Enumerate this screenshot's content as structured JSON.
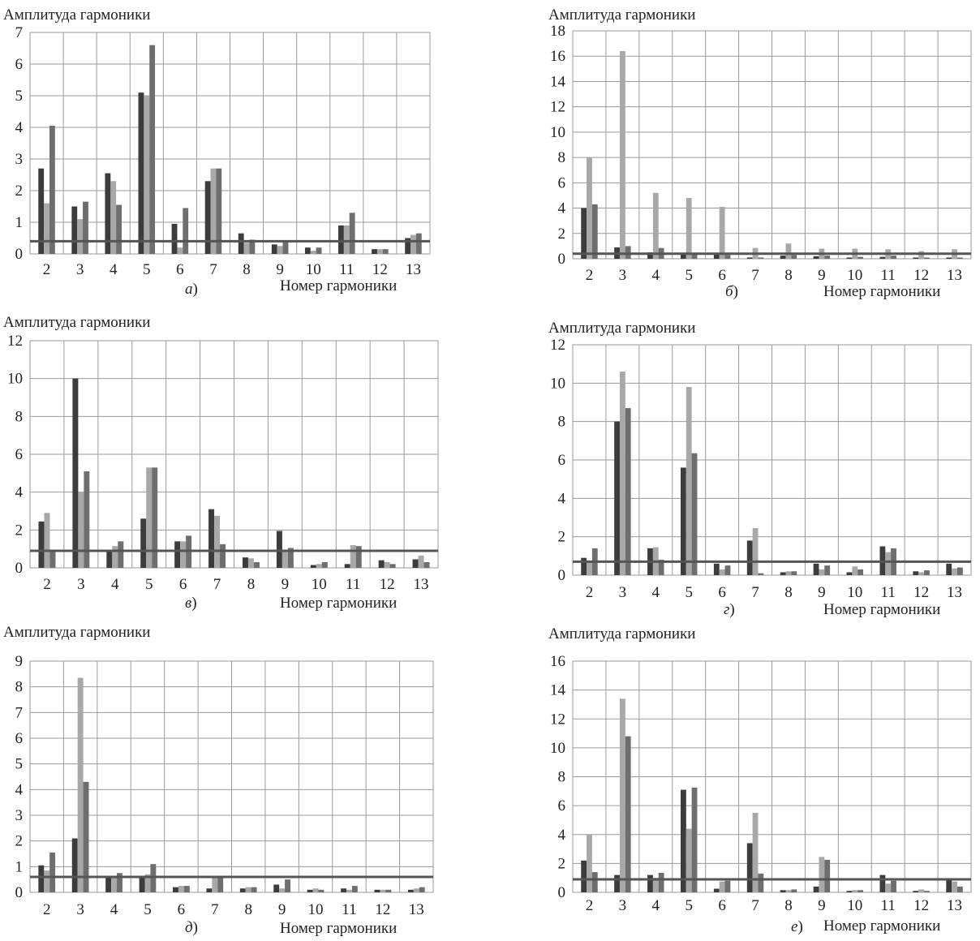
{
  "chart_data": [
    {
      "type": "bar",
      "panel_label": "а",
      "ylabel": "Амплитуда гармоники",
      "xlabel": "Номер гармоники",
      "categories": [
        "2",
        "3",
        "4",
        "5",
        "6",
        "7",
        "8",
        "9",
        "10",
        "11",
        "12",
        "13"
      ],
      "ylim": [
        0,
        7
      ],
      "yticks": [
        0,
        1,
        2,
        3,
        4,
        5,
        6,
        7
      ],
      "threshold": 0.4,
      "series": [
        {
          "color": "#3c3c3c",
          "values": [
            2.7,
            1.5,
            2.55,
            5.1,
            0.95,
            2.3,
            0.65,
            0.3,
            0.2,
            0.9,
            0.15,
            0.5
          ]
        },
        {
          "color": "#a8a8a8",
          "values": [
            1.6,
            1.1,
            2.3,
            5.0,
            0.2,
            2.7,
            0.35,
            0.25,
            0.1,
            0.9,
            0.15,
            0.6
          ]
        },
        {
          "color": "#6e6e6e",
          "values": [
            4.05,
            1.65,
            1.55,
            6.6,
            1.45,
            2.7,
            0.45,
            0.4,
            0.2,
            1.3,
            0.15,
            0.65
          ]
        }
      ]
    },
    {
      "type": "bar",
      "panel_label": "б",
      "ylabel": "Амплитуда гармоники",
      "xlabel": "Номер гармоники",
      "categories": [
        "2",
        "3",
        "4",
        "5",
        "6",
        "7",
        "8",
        "9",
        "10",
        "11",
        "12",
        "13"
      ],
      "ylim": [
        0,
        18
      ],
      "yticks": [
        0,
        2,
        4,
        6,
        8,
        10,
        12,
        14,
        16,
        18
      ],
      "threshold": 0.4,
      "series": [
        {
          "color": "#3c3c3c",
          "values": [
            4.0,
            0.9,
            0.5,
            0.4,
            0.35,
            0.1,
            0.25,
            0.2,
            0.1,
            0.15,
            0.1,
            0.1
          ]
        },
        {
          "color": "#a8a8a8",
          "values": [
            8.0,
            16.4,
            5.2,
            4.8,
            4.1,
            0.85,
            1.2,
            0.8,
            0.8,
            0.75,
            0.6,
            0.75
          ]
        },
        {
          "color": "#6e6e6e",
          "values": [
            4.3,
            1.0,
            0.85,
            0.45,
            0.3,
            0.1,
            0.3,
            0.25,
            0.15,
            0.25,
            0.1,
            0.1
          ]
        }
      ]
    },
    {
      "type": "bar",
      "panel_label": "в",
      "ylabel": "Амплитуда гармоники",
      "xlabel": "Номер гармоники",
      "categories": [
        "2",
        "3",
        "4",
        "5",
        "6",
        "7",
        "8",
        "9",
        "10",
        "11",
        "12",
        "13"
      ],
      "ylim": [
        0,
        12
      ],
      "yticks": [
        0,
        2,
        4,
        6,
        8,
        10,
        12
      ],
      "threshold": 0.9,
      "series": [
        {
          "color": "#3c3c3c",
          "values": [
            2.45,
            10.0,
            0.9,
            2.6,
            1.4,
            3.1,
            0.55,
            1.95,
            0.15,
            0.2,
            0.4,
            0.45
          ]
        },
        {
          "color": "#a8a8a8",
          "values": [
            2.9,
            4.0,
            1.15,
            5.3,
            1.4,
            2.75,
            0.5,
            0.95,
            0.2,
            1.2,
            0.3,
            0.65
          ]
        },
        {
          "color": "#6e6e6e",
          "values": [
            0.95,
            5.1,
            1.4,
            5.3,
            1.7,
            1.25,
            0.3,
            1.05,
            0.3,
            1.15,
            0.2,
            0.3
          ]
        }
      ]
    },
    {
      "type": "bar",
      "panel_label": "г",
      "ylabel": "Амплитуда гармоники",
      "xlabel": "Номер гармоники",
      "categories": [
        "2",
        "3",
        "4",
        "5",
        "6",
        "7",
        "8",
        "9",
        "10",
        "11",
        "12",
        "13"
      ],
      "ylim": [
        0,
        12
      ],
      "yticks": [
        0,
        2,
        4,
        6,
        8,
        10,
        12
      ],
      "threshold": 0.7,
      "series": [
        {
          "color": "#3c3c3c",
          "values": [
            0.9,
            8.0,
            1.4,
            5.6,
            0.6,
            1.8,
            0.15,
            0.6,
            0.15,
            1.5,
            0.2,
            0.6
          ]
        },
        {
          "color": "#a8a8a8",
          "values": [
            0.7,
            10.6,
            1.45,
            9.8,
            0.3,
            2.45,
            0.2,
            0.3,
            0.45,
            1.2,
            0.15,
            0.35
          ]
        },
        {
          "color": "#6e6e6e",
          "values": [
            1.4,
            8.7,
            0.8,
            6.35,
            0.5,
            0.1,
            0.2,
            0.5,
            0.3,
            1.4,
            0.25,
            0.4
          ]
        }
      ]
    },
    {
      "type": "bar",
      "panel_label": "д",
      "ylabel": "Амплитуда гармоники",
      "xlabel": "Номер гармоники",
      "categories": [
        "2",
        "3",
        "4",
        "5",
        "6",
        "7",
        "8",
        "9",
        "10",
        "11",
        "12",
        "13"
      ],
      "ylim": [
        0,
        9
      ],
      "yticks": [
        0,
        1,
        2,
        3,
        4,
        5,
        6,
        7,
        8,
        9
      ],
      "threshold": 0.6,
      "series": [
        {
          "color": "#3c3c3c",
          "values": [
            1.05,
            2.1,
            0.6,
            0.6,
            0.2,
            0.15,
            0.15,
            0.3,
            0.1,
            0.15,
            0.1,
            0.1
          ]
        },
        {
          "color": "#a8a8a8",
          "values": [
            0.85,
            8.35,
            0.6,
            0.7,
            0.25,
            0.6,
            0.2,
            0.15,
            0.15,
            0.1,
            0.1,
            0.15
          ]
        },
        {
          "color": "#6e6e6e",
          "values": [
            1.55,
            4.3,
            0.75,
            1.1,
            0.25,
            0.6,
            0.2,
            0.5,
            0.1,
            0.25,
            0.1,
            0.2
          ]
        }
      ]
    },
    {
      "type": "bar",
      "panel_label": "е",
      "ylabel": "Амплитуда гармоники",
      "xlabel": "Номер гармоники",
      "categories": [
        "2",
        "3",
        "4",
        "5",
        "6",
        "7",
        "8",
        "9",
        "10",
        "11",
        "12",
        "13"
      ],
      "ylim": [
        0,
        16
      ],
      "yticks": [
        0,
        2,
        4,
        6,
        8,
        10,
        12,
        14,
        16
      ],
      "threshold": 0.9,
      "series": [
        {
          "color": "#3c3c3c",
          "values": [
            2.2,
            1.2,
            1.2,
            7.1,
            0.25,
            3.4,
            0.15,
            0.4,
            0.1,
            1.2,
            0.1,
            0.85
          ]
        },
        {
          "color": "#a8a8a8",
          "values": [
            4.0,
            13.4,
            1.0,
            4.4,
            0.75,
            5.5,
            0.15,
            2.45,
            0.15,
            0.6,
            0.2,
            0.75
          ]
        },
        {
          "color": "#6e6e6e",
          "values": [
            1.4,
            10.8,
            1.35,
            7.25,
            0.8,
            1.3,
            0.2,
            2.25,
            0.15,
            0.8,
            0.1,
            0.4
          ]
        }
      ]
    }
  ]
}
